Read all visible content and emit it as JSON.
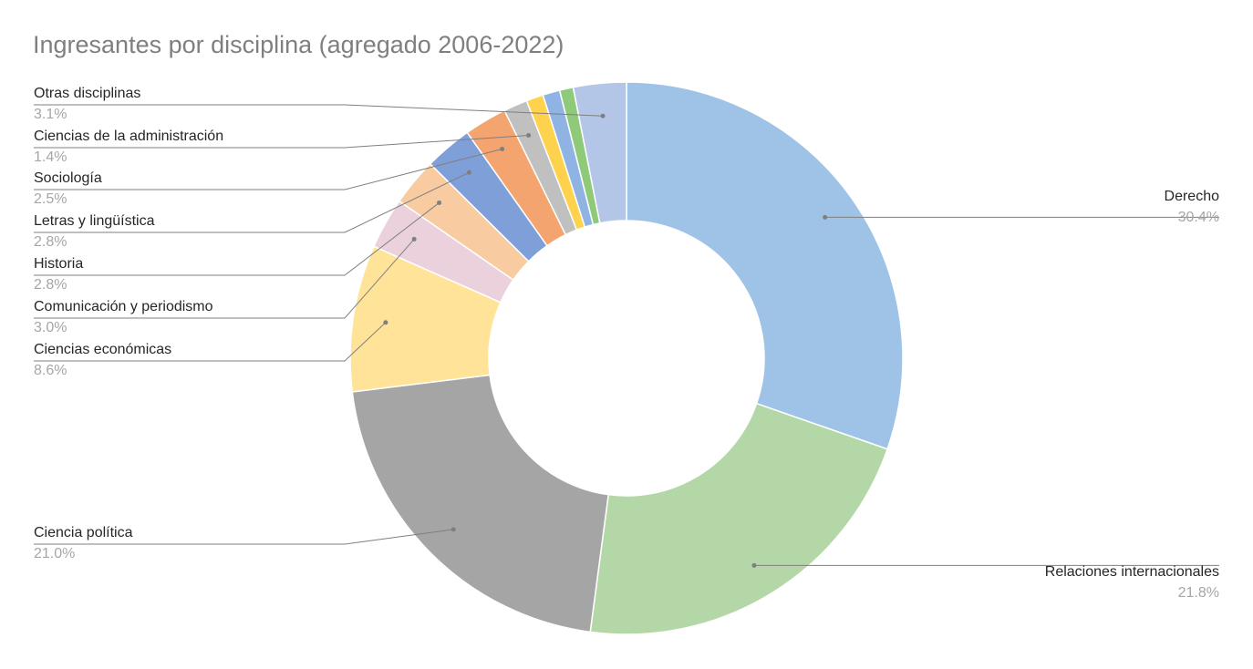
{
  "chart_data": {
    "type": "pie",
    "variant": "donut",
    "title": "Ingresantes por disciplina (agregado 2006-2022)",
    "slices": [
      {
        "name": "Derecho",
        "value": 30.4,
        "label_value": "30.4%",
        "color": "#9fc3e7"
      },
      {
        "name": "Relaciones internacionales",
        "value": 21.8,
        "label_value": "21.8%",
        "color": "#b4d7a8"
      },
      {
        "name": "Ciencia política",
        "value": 21.0,
        "label_value": "21.0%",
        "color": "#a5a5a5"
      },
      {
        "name": "Ciencias económicas",
        "value": 8.6,
        "label_value": "8.6%",
        "color": "#ffe399"
      },
      {
        "name": "Comunicación y periodismo",
        "value": 3.0,
        "label_value": "3.0%",
        "color": "#ead1dc"
      },
      {
        "name": "Historia",
        "value": 2.8,
        "label_value": "2.8%",
        "color": "#f8cba0"
      },
      {
        "name": "Letras y lingüística",
        "value": 2.8,
        "label_value": "2.8%",
        "color": "#7f9fd9"
      },
      {
        "name": "Sociología",
        "value": 2.5,
        "label_value": "2.5%",
        "color": "#f4a46f"
      },
      {
        "name": "Ciencias de la administración",
        "value": 1.4,
        "label_value": "1.4%",
        "color": "#c0c0c0"
      },
      {
        "name": "",
        "value": 1.0,
        "label_value": "",
        "color": "#ffd24d"
      },
      {
        "name": "",
        "value": 1.0,
        "label_value": "",
        "color": "#8fb4e3"
      },
      {
        "name": "",
        "value": 0.8,
        "label_value": "",
        "color": "#8fca7a"
      },
      {
        "name": "Otras disciplinas",
        "value": 3.1,
        "label_value": "3.1%",
        "color": "#b4c6e7"
      }
    ]
  }
}
